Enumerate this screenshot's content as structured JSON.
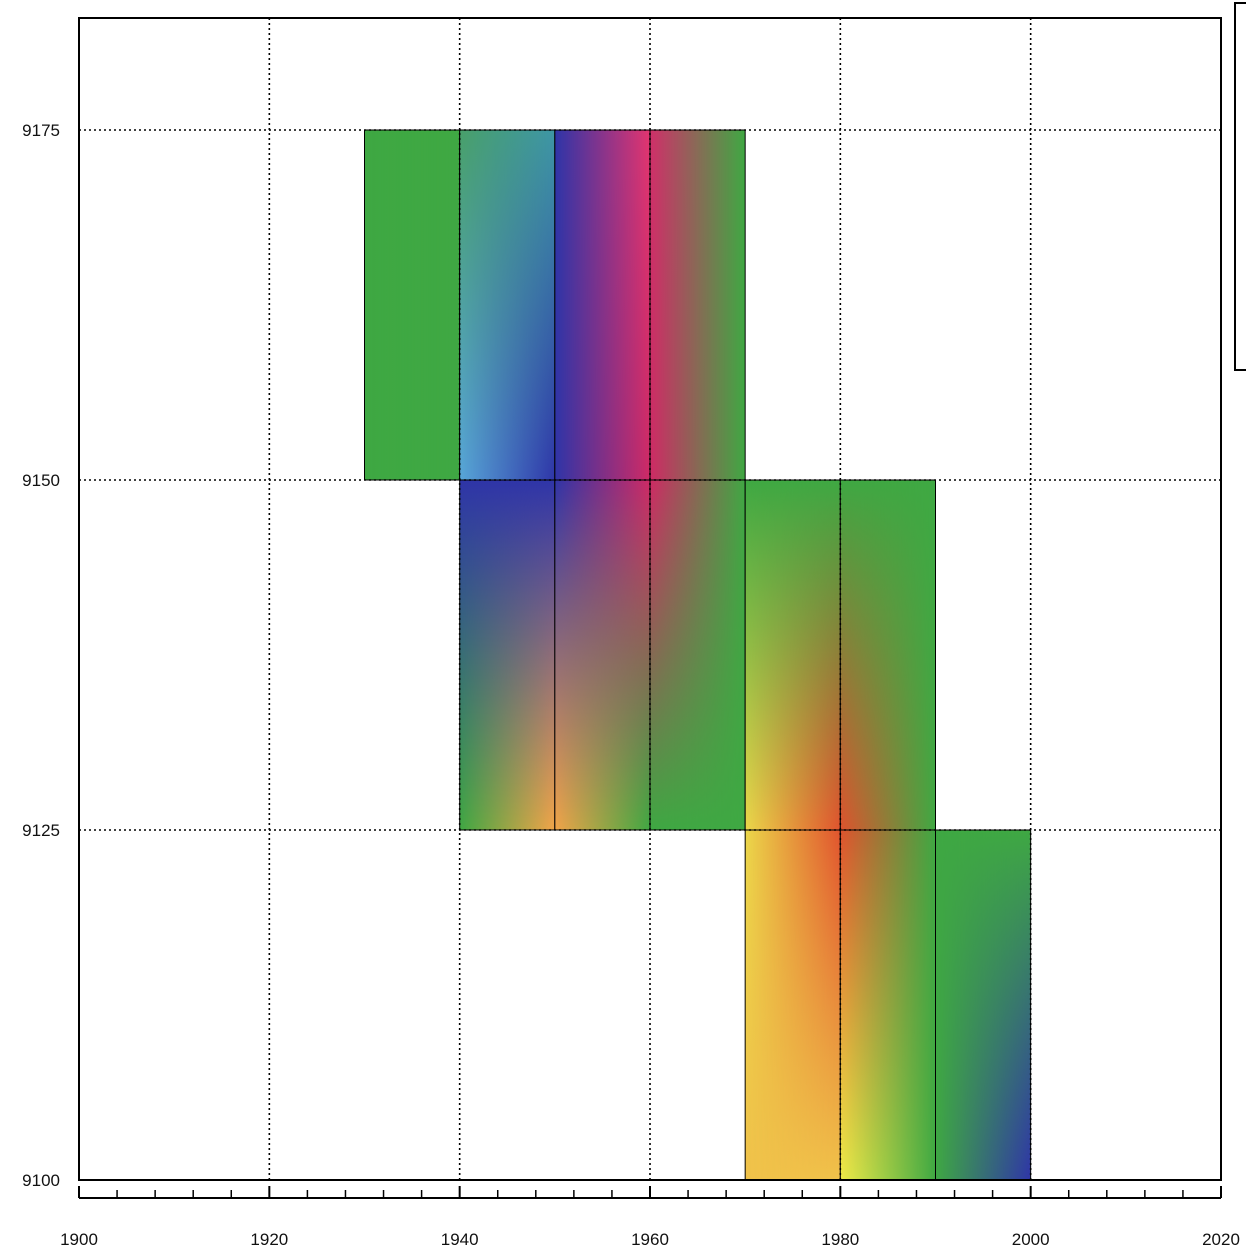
{
  "chart_data": {
    "type": "heatmap",
    "x_ticks": [
      1900,
      1920,
      1940,
      1960,
      1980,
      2000,
      2020
    ],
    "y_ticks": [
      9175,
      9150,
      9125,
      9100
    ],
    "xlim": [
      1900,
      2020
    ],
    "ylim": [
      9100,
      9183
    ],
    "grid": true,
    "legend": "top-right (box, empty)",
    "colormap": [
      "#f0ec48",
      "#f3a449",
      "#e0532e",
      "#3fa843",
      "#58a7d9",
      "#2f35a8",
      "#e3356f"
    ],
    "cells": [
      {
        "x0": 1930,
        "x1": 1940,
        "y0": 9150,
        "y1": 9175,
        "colors": [
          "#3fa843",
          "#3fa843",
          "#3fa843",
          "#3fa843"
        ]
      },
      {
        "x0": 1940,
        "x1": 1950,
        "y0": 9150,
        "y1": 9175,
        "colors": [
          "#49a06a",
          "#3e96a6",
          "#2f35a8",
          "#58a7d9"
        ]
      },
      {
        "x0": 1950,
        "x1": 1960,
        "y0": 9150,
        "y1": 9175,
        "colors": [
          "#2f35a8",
          "#e3356f",
          "#cf2a65",
          "#2f35a8"
        ]
      },
      {
        "x0": 1960,
        "x1": 1970,
        "y0": 9150,
        "y1": 9175,
        "colors": [
          "#d0306a",
          "#3fa843",
          "#3fa843",
          "#cf2a65"
        ]
      },
      {
        "x0": 1940,
        "x1": 1950,
        "y0": 9125,
        "y1": 9150,
        "colors": [
          "#2f35a8",
          "#2f35a8",
          "#f3a449",
          "#3fa843"
        ]
      },
      {
        "x0": 1950,
        "x1": 1960,
        "y0": 9125,
        "y1": 9150,
        "colors": [
          "#2f35a8",
          "#cf2a65",
          "#3fa843",
          "#f3a449"
        ]
      },
      {
        "x0": 1960,
        "x1": 1970,
        "y0": 9125,
        "y1": 9150,
        "colors": [
          "#cf2a65",
          "#3fa843",
          "#3fa843",
          "#3fa843"
        ]
      },
      {
        "x0": 1970,
        "x1": 1980,
        "y0": 9125,
        "y1": 9150,
        "colors": [
          "#3fa843",
          "#3fa843",
          "#e0532e",
          "#ecd84a"
        ]
      },
      {
        "x0": 1980,
        "x1": 1990,
        "y0": 9125,
        "y1": 9150,
        "colors": [
          "#3fa843",
          "#3fa843",
          "#3fa843",
          "#e0532e"
        ]
      },
      {
        "x0": 1970,
        "x1": 1980,
        "y0": 9100,
        "y1": 9125,
        "colors": [
          "#ecd84a",
          "#e0532e",
          "#f0c24a",
          "#f0c24a"
        ]
      },
      {
        "x0": 1980,
        "x1": 1990,
        "y0": 9100,
        "y1": 9125,
        "colors": [
          "#e0532e",
          "#3fa843",
          "#3fa843",
          "#f0ec48"
        ]
      },
      {
        "x0": 1990,
        "x1": 2000,
        "y0": 9100,
        "y1": 9125,
        "colors": [
          "#3fa843",
          "#3fa843",
          "#2f35a8",
          "#3fa843"
        ]
      }
    ]
  }
}
